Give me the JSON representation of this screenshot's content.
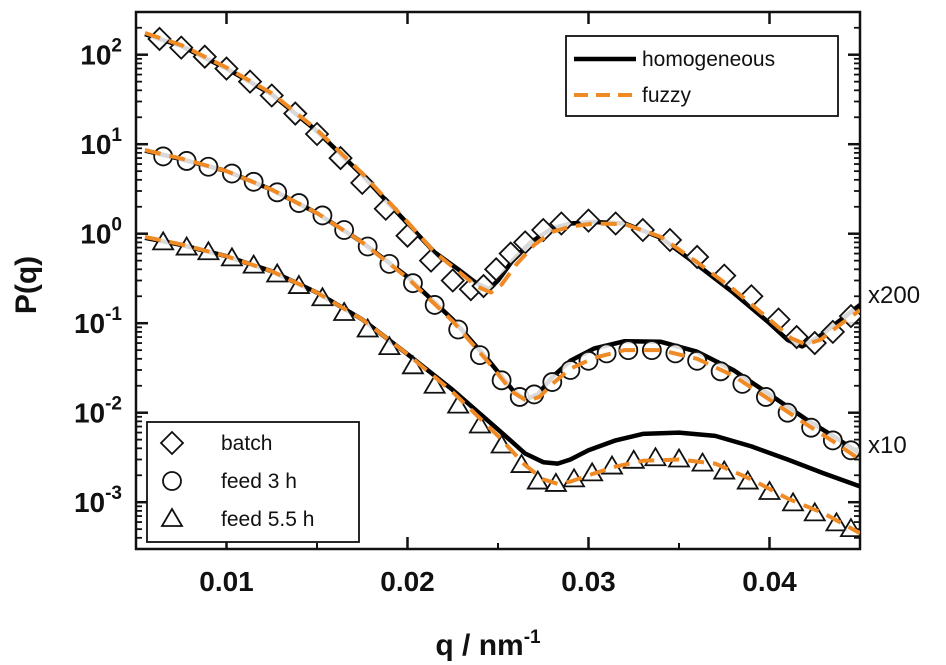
{
  "chart_data": {
    "type": "scatter",
    "title": "",
    "xlabel": "q / nm",
    "xlabel_sup": "-1",
    "ylabel": "P(q)",
    "xlim": [
      0.005,
      0.045
    ],
    "ylim": [
      0.0003,
      300
    ],
    "yscale": "log",
    "x_ticks": [
      0.01,
      0.02,
      0.03,
      0.04
    ],
    "x_tick_labels": [
      "0.01",
      "0.02",
      "0.03",
      "0.04"
    ],
    "y_ticks": [
      100,
      10,
      1,
      0.1,
      0.01,
      0.001
    ],
    "y_tick_labels": [
      {
        "base": "10",
        "exp": "2"
      },
      {
        "base": "10",
        "exp": "1"
      },
      {
        "base": "10",
        "exp": "0"
      },
      {
        "base": "10",
        "exp": "-1"
      },
      {
        "base": "10",
        "exp": "-2"
      },
      {
        "base": "10",
        "exp": "-3"
      }
    ],
    "grid": false,
    "annotations": [
      {
        "text": "x200",
        "near_series": "batch"
      },
      {
        "text": "x10",
        "near_series": "feed 3 h"
      }
    ],
    "legend_fits": {
      "placement": "top-right",
      "entries": [
        {
          "label": "homogeneous",
          "style": "solid",
          "color": "#000000"
        },
        {
          "label": "fuzzy",
          "style": "dashed",
          "color": "#f08a24"
        }
      ]
    },
    "legend_data": {
      "placement": "bottom-left",
      "entries": [
        {
          "label": "batch",
          "marker": "diamond"
        },
        {
          "label": "feed 3 h",
          "marker": "circle"
        },
        {
          "label": "feed 5.5 h",
          "marker": "triangle"
        }
      ]
    },
    "series": [
      {
        "name": "batch",
        "marker": "diamond",
        "x": [
          0.0063,
          0.0075,
          0.0088,
          0.01,
          0.0113,
          0.0125,
          0.0138,
          0.015,
          0.0163,
          0.0175,
          0.0188,
          0.02,
          0.0213,
          0.0225,
          0.0235,
          0.0242,
          0.0249,
          0.0257,
          0.0265,
          0.0275,
          0.0285,
          0.03,
          0.0315,
          0.033,
          0.0345,
          0.036,
          0.0375,
          0.039,
          0.0405,
          0.0415,
          0.0425,
          0.0435,
          0.0445
        ],
        "values": [
          150,
          120,
          95,
          70,
          50,
          35,
          22,
          13,
          7,
          3.7,
          1.9,
          0.95,
          0.5,
          0.3,
          0.24,
          0.26,
          0.4,
          0.6,
          0.8,
          1.1,
          1.3,
          1.4,
          1.3,
          1.1,
          0.85,
          0.55,
          0.34,
          0.2,
          0.11,
          0.07,
          0.06,
          0.08,
          0.12
        ]
      },
      {
        "name": "feed 3 h",
        "marker": "circle",
        "x": [
          0.0065,
          0.0078,
          0.009,
          0.0103,
          0.0115,
          0.0128,
          0.014,
          0.0153,
          0.0165,
          0.0178,
          0.019,
          0.0203,
          0.0215,
          0.0228,
          0.024,
          0.0252,
          0.0262,
          0.027,
          0.028,
          0.029,
          0.03,
          0.031,
          0.0322,
          0.0335,
          0.0348,
          0.036,
          0.0373,
          0.0385,
          0.0398,
          0.041,
          0.0423,
          0.0435,
          0.0445
        ],
        "values": [
          7.3,
          6.5,
          5.6,
          4.7,
          3.8,
          2.9,
          2.2,
          1.6,
          1.1,
          0.72,
          0.46,
          0.28,
          0.16,
          0.085,
          0.044,
          0.023,
          0.015,
          0.016,
          0.022,
          0.03,
          0.038,
          0.046,
          0.05,
          0.05,
          0.046,
          0.038,
          0.029,
          0.021,
          0.015,
          0.01,
          0.0068,
          0.0049,
          0.0038
        ]
      },
      {
        "name": "feed 5.5 h",
        "marker": "triangle",
        "x": [
          0.0065,
          0.0078,
          0.009,
          0.0103,
          0.0115,
          0.0128,
          0.014,
          0.0153,
          0.0165,
          0.0178,
          0.019,
          0.0203,
          0.0215,
          0.0228,
          0.024,
          0.0252,
          0.0263,
          0.0272,
          0.0282,
          0.0292,
          0.0302,
          0.0313,
          0.0325,
          0.0337,
          0.035,
          0.0363,
          0.0375,
          0.0388,
          0.04,
          0.0413,
          0.0425,
          0.0437,
          0.0445
        ],
        "values": [
          0.8,
          0.7,
          0.62,
          0.53,
          0.44,
          0.35,
          0.26,
          0.19,
          0.13,
          0.085,
          0.054,
          0.033,
          0.02,
          0.012,
          0.0072,
          0.0043,
          0.0026,
          0.0017,
          0.0016,
          0.0018,
          0.0021,
          0.0025,
          0.0029,
          0.0031,
          0.003,
          0.0027,
          0.0022,
          0.0017,
          0.0013,
          0.00097,
          0.00075,
          0.00058,
          0.0005
        ]
      }
    ],
    "fits": [
      {
        "name": "homogeneous",
        "for_series": "batch",
        "x": [
          0.0055,
          0.0075,
          0.01,
          0.0125,
          0.015,
          0.0175,
          0.02,
          0.0215,
          0.0228,
          0.0238,
          0.0245,
          0.025,
          0.0258,
          0.0268,
          0.028,
          0.029,
          0.0303,
          0.032,
          0.034,
          0.036,
          0.038,
          0.04,
          0.041,
          0.0418,
          0.0427,
          0.0437,
          0.045
        ],
        "values": [
          170,
          125,
          70,
          36,
          14,
          4.5,
          1.3,
          0.62,
          0.4,
          0.28,
          0.24,
          0.3,
          0.5,
          0.8,
          1.15,
          1.3,
          1.35,
          1.3,
          0.9,
          0.45,
          0.22,
          0.1,
          0.065,
          0.055,
          0.07,
          0.1,
          0.16
        ]
      },
      {
        "name": "homogeneous",
        "for_series": "feed 3 h",
        "x": [
          0.0055,
          0.0075,
          0.01,
          0.0125,
          0.015,
          0.0175,
          0.02,
          0.0225,
          0.0245,
          0.0258,
          0.0265,
          0.0272,
          0.028,
          0.029,
          0.0303,
          0.032,
          0.034,
          0.036,
          0.038,
          0.04,
          0.042,
          0.0435,
          0.045
        ],
        "values": [
          8.5,
          6.8,
          5,
          3.1,
          1.7,
          0.8,
          0.33,
          0.11,
          0.038,
          0.018,
          0.014,
          0.016,
          0.025,
          0.038,
          0.052,
          0.063,
          0.062,
          0.048,
          0.03,
          0.016,
          0.0085,
          0.0055,
          0.0035
        ]
      },
      {
        "name": "homogeneous",
        "for_series": "feed 5.5 h",
        "x": [
          0.0055,
          0.0075,
          0.01,
          0.0125,
          0.015,
          0.0175,
          0.02,
          0.0225,
          0.025,
          0.0265,
          0.0275,
          0.0283,
          0.029,
          0.03,
          0.0315,
          0.033,
          0.035,
          0.037,
          0.039,
          0.041,
          0.043,
          0.045
        ],
        "values": [
          0.9,
          0.75,
          0.56,
          0.38,
          0.22,
          0.11,
          0.045,
          0.018,
          0.0065,
          0.0035,
          0.0028,
          0.0027,
          0.003,
          0.0038,
          0.0049,
          0.0058,
          0.006,
          0.0055,
          0.0042,
          0.003,
          0.0021,
          0.0015
        ]
      },
      {
        "name": "fuzzy",
        "for_series": "batch",
        "x": [
          0.0055,
          0.0075,
          0.01,
          0.0125,
          0.015,
          0.0175,
          0.02,
          0.0215,
          0.0228,
          0.0238,
          0.0246,
          0.0252,
          0.026,
          0.027,
          0.028,
          0.029,
          0.0303,
          0.032,
          0.034,
          0.036,
          0.038,
          0.04,
          0.0412,
          0.042,
          0.0428,
          0.0437,
          0.045
        ],
        "values": [
          175,
          128,
          72,
          37,
          14.5,
          4.7,
          1.35,
          0.62,
          0.38,
          0.26,
          0.22,
          0.27,
          0.45,
          0.75,
          1.05,
          1.2,
          1.3,
          1.28,
          0.92,
          0.48,
          0.24,
          0.11,
          0.068,
          0.058,
          0.065,
          0.09,
          0.14
        ]
      },
      {
        "name": "fuzzy",
        "for_series": "feed 3 h",
        "x": [
          0.0055,
          0.0075,
          0.01,
          0.0125,
          0.015,
          0.0175,
          0.02,
          0.0225,
          0.0245,
          0.0258,
          0.0266,
          0.0273,
          0.028,
          0.029,
          0.0303,
          0.032,
          0.034,
          0.036,
          0.038,
          0.04,
          0.042,
          0.0435,
          0.045
        ],
        "values": [
          8.6,
          6.9,
          5,
          3.1,
          1.7,
          0.8,
          0.32,
          0.105,
          0.036,
          0.017,
          0.0135,
          0.015,
          0.021,
          0.031,
          0.041,
          0.05,
          0.05,
          0.04,
          0.026,
          0.014,
          0.0075,
          0.0048,
          0.003
        ]
      },
      {
        "name": "fuzzy",
        "for_series": "feed 5.5 h",
        "x": [
          0.0055,
          0.0075,
          0.01,
          0.0125,
          0.015,
          0.0175,
          0.02,
          0.0225,
          0.025,
          0.0265,
          0.0275,
          0.0283,
          0.029,
          0.03,
          0.0315,
          0.033,
          0.035,
          0.037,
          0.039,
          0.041,
          0.043,
          0.045
        ],
        "values": [
          0.92,
          0.76,
          0.56,
          0.38,
          0.22,
          0.11,
          0.045,
          0.017,
          0.0055,
          0.0026,
          0.0018,
          0.0016,
          0.0017,
          0.002,
          0.0025,
          0.0029,
          0.003,
          0.0027,
          0.0018,
          0.0011,
          0.00075,
          0.00045
        ]
      }
    ],
    "colors": {
      "homogeneous": "#000000",
      "fuzzy": "#f08a24",
      "marker_stroke": "#111111",
      "marker_fill": "#ffffff"
    }
  }
}
